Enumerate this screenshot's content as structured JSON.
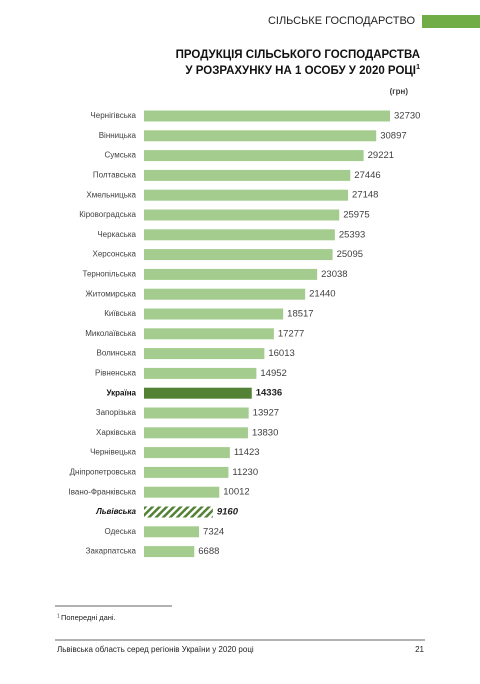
{
  "header": {
    "section": "СІЛЬСЬКЕ ГОСПОДАРСТВО"
  },
  "chart_data": {
    "type": "bar",
    "orientation": "horizontal",
    "title": [
      "ПРОДУКЦІЯ СІЛЬСЬКОГО ГОСПОДАРСТВА",
      "У РОЗРАХУНКУ НА 1 ОСОБУ У 2020 РОЦІ"
    ],
    "title_note": "1",
    "unit": "(грн)",
    "categories": [
      "Чернігівська",
      "Вінницька",
      "Сумська",
      "Полтавська",
      "Хмельницька",
      "Кіровоградська",
      "Черкаська",
      "Херсонська",
      "Тернопільська",
      "Житомирська",
      "Київська",
      "Миколаївська",
      "Волинська",
      "Рівненська",
      "Україна",
      "Запорізька",
      "Харківська",
      "Чернівецька",
      "Дніпропетровська",
      "Івано-Франківська",
      "Львівська",
      "Одеська",
      "Закарпатська"
    ],
    "values": [
      32730,
      30897,
      29221,
      27446,
      27148,
      25975,
      25393,
      25095,
      23038,
      21440,
      18517,
      17277,
      16013,
      14952,
      14336,
      13927,
      13830,
      11423,
      11230,
      10012,
      9160,
      7324,
      6688
    ],
    "color": "#a3cc8e",
    "highlight_color": "#548235",
    "emphasis": [
      "normal",
      "normal",
      "normal",
      "normal",
      "normal",
      "normal",
      "normal",
      "normal",
      "normal",
      "normal",
      "normal",
      "normal",
      "normal",
      "normal",
      "bold",
      "normal",
      "normal",
      "normal",
      "normal",
      "normal",
      "hatched",
      "normal",
      "normal"
    ]
  },
  "footnote": {
    "mark": "1",
    "text": "Попередні дані."
  },
  "footer": {
    "text": "Львівська область серед регіонів України у 2020 році",
    "page": "21"
  }
}
